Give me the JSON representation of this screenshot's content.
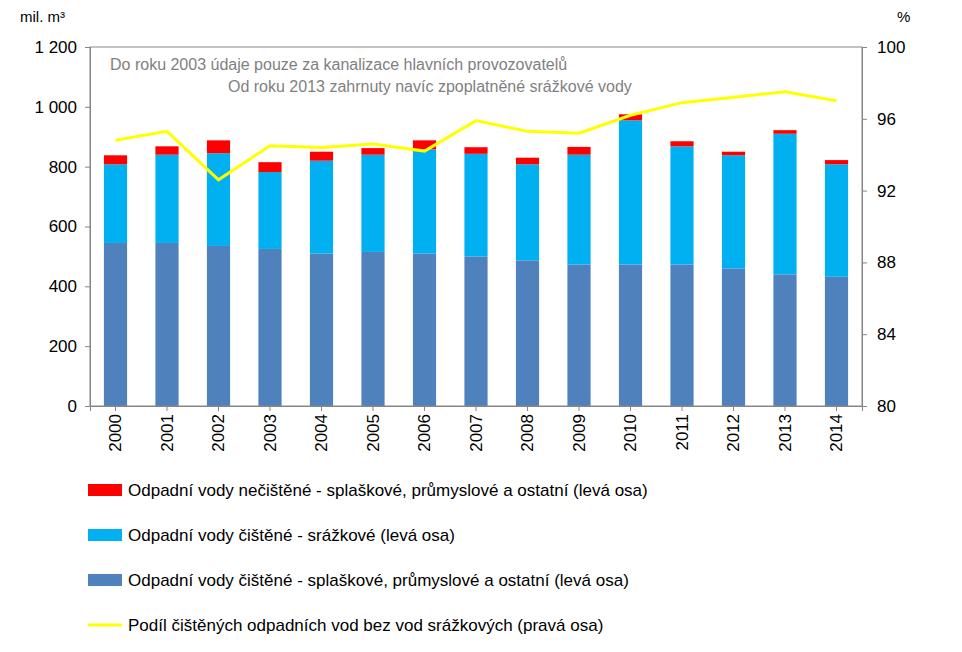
{
  "chart_data": {
    "type": "bar",
    "stacked": true,
    "grid": false,
    "legend": "bottom",
    "y_label": "mil. m³",
    "y2_label": "%",
    "annotations": [
      "Do roku 2003 údaje pouze za kanalizace hlavních provozovatelů",
      "Od roku 2013 zahrnuty navíc zpoplatněné srážkové vody"
    ],
    "categories": [
      "2000",
      "2001",
      "2002",
      "2003",
      "2004",
      "2005",
      "2006",
      "2007",
      "2008",
      "2009",
      "2010",
      "2011",
      "2012",
      "2013",
      "2014"
    ],
    "ylim": [
      0,
      1200
    ],
    "yticks": [
      0,
      200,
      400,
      600,
      800,
      {
        "value": 1000,
        "label": "1 000"
      },
      {
        "value": 1200,
        "label": "1 200"
      }
    ],
    "y2lim": [
      80,
      100
    ],
    "y2ticks": [
      80,
      84,
      88,
      92,
      96,
      100
    ],
    "series": [
      {
        "name": "Odpadní vody čištěné - splaškové, průmyslové a ostatní (levá osa)",
        "type": "bar",
        "color": "#4f81bd",
        "values": [
          545,
          545,
          535,
          525,
          510,
          515,
          510,
          500,
          487,
          473,
          473,
          473,
          460,
          440,
          432
        ]
      },
      {
        "name": "Odpadní vody čištěné - srážkové (levá osa)",
        "type": "bar",
        "color": "#00b0f0",
        "values": [
          263,
          295,
          310,
          257,
          310,
          325,
          348,
          343,
          321,
          367,
          482,
          395,
          378,
          470,
          376
        ]
      },
      {
        "name": "Odpadní vody nečištěné - splaškové, průmyslové a ostatní (levá osa)",
        "type": "bar",
        "color": "#ff0000",
        "values": [
          30,
          28,
          43,
          33,
          30,
          22,
          30,
          22,
          22,
          26,
          20,
          17,
          12,
          12,
          14
        ]
      },
      {
        "name": "Podíl čištěných odpadních vod bez vod srážkových (pravá osa)",
        "type": "line",
        "axis": "y2",
        "color": "#ffff00",
        "line_style": "solid",
        "values": [
          94.8,
          95.3,
          92.6,
          94.5,
          94.4,
          94.6,
          94.2,
          95.9,
          95.3,
          95.2,
          96.2,
          96.9,
          97.2,
          97.5,
          97.0
        ]
      }
    ]
  }
}
